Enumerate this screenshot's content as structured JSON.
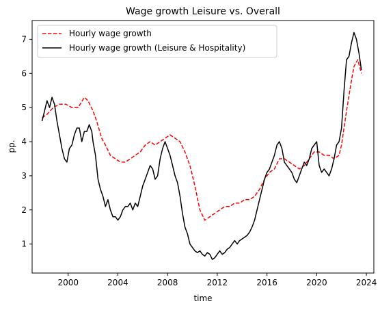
{
  "chart_data": {
    "type": "line",
    "title": "Wage growth Leisure vs. Overall",
    "xlabel": "time",
    "ylabel": "pp.",
    "xlim": [
      1997.1,
      2024.6
    ],
    "ylim": [
      0.15,
      7.55
    ],
    "x_ticks": [
      2000,
      2004,
      2008,
      2012,
      2016,
      2020,
      2024
    ],
    "y_ticks": [
      1,
      2,
      3,
      4,
      5,
      6,
      7
    ],
    "grid": false,
    "legend_position": "top-left",
    "series": [
      {
        "name": "Hourly wage growth",
        "color": "#ff0000",
        "style": "dashed",
        "x": [
          1997.9,
          1998.3,
          1998.8,
          1999.3,
          1999.8,
          2000.3,
          2000.8,
          2001.3,
          2001.6,
          2002.0,
          2002.3,
          2002.7,
          2003.0,
          2003.4,
          2003.8,
          2004.2,
          2004.6,
          2005.0,
          2005.4,
          2005.8,
          2006.2,
          2006.6,
          2007.0,
          2007.4,
          2007.8,
          2008.2,
          2008.6,
          2009.0,
          2009.4,
          2009.8,
          2010.2,
          2010.6,
          2011.0,
          2011.4,
          2011.8,
          2012.2,
          2012.6,
          2013.0,
          2013.4,
          2013.8,
          2014.2,
          2014.6,
          2015.0,
          2015.4,
          2015.8,
          2016.2,
          2016.6,
          2017.0,
          2017.4,
          2017.8,
          2018.2,
          2018.6,
          2019.0,
          2019.4,
          2019.8,
          2020.2,
          2020.6,
          2021.0,
          2021.4,
          2021.8,
          2022.0,
          2022.4,
          2022.8,
          2023.0,
          2023.3,
          2023.6
        ],
        "y": [
          4.7,
          4.8,
          5.0,
          5.1,
          5.1,
          5.0,
          5.0,
          5.3,
          5.2,
          4.9,
          4.6,
          4.1,
          3.9,
          3.6,
          3.5,
          3.4,
          3.4,
          3.5,
          3.6,
          3.7,
          3.9,
          4.0,
          3.9,
          4.0,
          4.1,
          4.2,
          4.1,
          4.0,
          3.7,
          3.3,
          2.7,
          2.0,
          1.7,
          1.8,
          1.9,
          2.0,
          2.1,
          2.1,
          2.2,
          2.2,
          2.3,
          2.3,
          2.4,
          2.6,
          2.9,
          3.1,
          3.2,
          3.5,
          3.5,
          3.4,
          3.3,
          3.2,
          3.3,
          3.5,
          3.7,
          3.7,
          3.6,
          3.6,
          3.5,
          3.6,
          3.9,
          4.9,
          5.8,
          6.2,
          6.4,
          6.0
        ]
      },
      {
        "name": "Hourly wage growth (Leisure & Hospitality)",
        "color": "#000000",
        "style": "solid",
        "x": [
          1997.9,
          1998.1,
          1998.3,
          1998.5,
          1998.7,
          1998.9,
          1999.1,
          1999.3,
          1999.5,
          1999.7,
          1999.9,
          2000.1,
          2000.3,
          2000.5,
          2000.7,
          2000.9,
          2001.1,
          2001.3,
          2001.5,
          2001.7,
          2001.9,
          2002.0,
          2002.2,
          2002.4,
          2002.6,
          2002.8,
          2003.0,
          2003.2,
          2003.4,
          2003.6,
          2003.8,
          2004.0,
          2004.2,
          2004.4,
          2004.6,
          2004.8,
          2005.0,
          2005.2,
          2005.4,
          2005.6,
          2005.8,
          2006.0,
          2006.2,
          2006.4,
          2006.6,
          2006.8,
          2007.0,
          2007.2,
          2007.4,
          2007.6,
          2007.8,
          2008.0,
          2008.2,
          2008.4,
          2008.6,
          2008.8,
          2009.0,
          2009.2,
          2009.4,
          2009.6,
          2009.8,
          2010.0,
          2010.2,
          2010.4,
          2010.6,
          2010.8,
          2011.0,
          2011.2,
          2011.4,
          2011.6,
          2011.8,
          2012.0,
          2012.2,
          2012.4,
          2012.6,
          2012.8,
          2013.0,
          2013.2,
          2013.4,
          2013.6,
          2013.8,
          2014.0,
          2014.2,
          2014.4,
          2014.6,
          2014.8,
          2015.0,
          2015.2,
          2015.4,
          2015.6,
          2015.8,
          2016.0,
          2016.2,
          2016.4,
          2016.6,
          2016.8,
          2017.0,
          2017.2,
          2017.4,
          2017.6,
          2017.8,
          2018.0,
          2018.2,
          2018.4,
          2018.6,
          2018.8,
          2019.0,
          2019.2,
          2019.4,
          2019.6,
          2019.8,
          2020.0,
          2020.2,
          2020.4,
          2020.6,
          2020.8,
          2021.0,
          2021.2,
          2021.4,
          2021.6,
          2021.8,
          2022.0,
          2022.2,
          2022.4,
          2022.6,
          2022.8,
          2023.0,
          2023.2,
          2023.4,
          2023.6
        ],
        "y": [
          4.6,
          4.9,
          5.2,
          5.0,
          5.3,
          5.1,
          4.6,
          4.2,
          3.8,
          3.5,
          3.4,
          3.8,
          3.9,
          4.2,
          4.4,
          4.4,
          4.0,
          4.3,
          4.3,
          4.5,
          4.3,
          4.0,
          3.6,
          2.9,
          2.6,
          2.4,
          2.1,
          2.3,
          2.0,
          1.8,
          1.8,
          1.7,
          1.8,
          2.0,
          2.1,
          2.1,
          2.2,
          2.0,
          2.2,
          2.1,
          2.4,
          2.7,
          2.9,
          3.1,
          3.3,
          3.2,
          2.9,
          3.0,
          3.5,
          3.8,
          4.0,
          3.8,
          3.6,
          3.3,
          3.0,
          2.8,
          2.4,
          1.9,
          1.5,
          1.3,
          1.0,
          0.9,
          0.8,
          0.75,
          0.8,
          0.7,
          0.65,
          0.75,
          0.7,
          0.55,
          0.6,
          0.7,
          0.8,
          0.7,
          0.75,
          0.85,
          0.9,
          1.0,
          1.1,
          1.0,
          1.1,
          1.15,
          1.2,
          1.25,
          1.35,
          1.5,
          1.7,
          2.0,
          2.3,
          2.6,
          2.9,
          3.1,
          3.2,
          3.4,
          3.6,
          3.9,
          4.0,
          3.8,
          3.4,
          3.3,
          3.2,
          3.1,
          2.9,
          2.8,
          3.0,
          3.2,
          3.4,
          3.3,
          3.5,
          3.8,
          3.9,
          4.0,
          3.3,
          3.1,
          3.2,
          3.1,
          3.0,
          3.2,
          3.5,
          3.9,
          4.0,
          4.4,
          5.5,
          6.4,
          6.5,
          6.9,
          7.2,
          7.0,
          6.6,
          6.1
        ]
      }
    ]
  }
}
